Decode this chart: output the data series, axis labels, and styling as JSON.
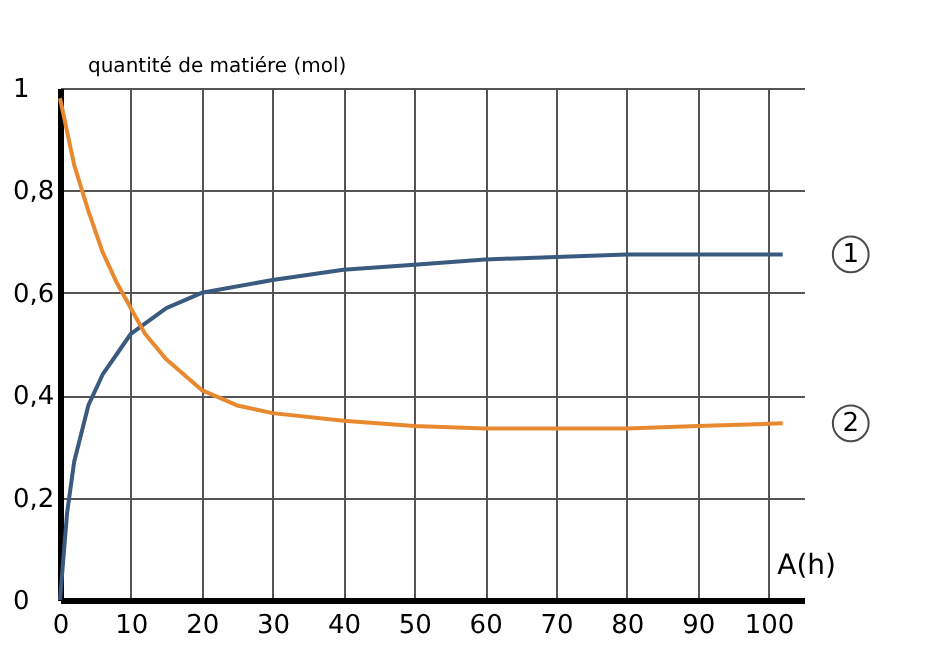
{
  "chart_data": {
    "type": "line",
    "xlabel": "A(h)",
    "ylabel": "quantité de matiére (mol)",
    "xlim": [
      0,
      105
    ],
    "xticks": [
      0,
      10,
      20,
      30,
      40,
      50,
      60,
      70,
      80,
      90,
      100
    ],
    "ylim": [
      0,
      1
    ],
    "yticks": [
      0,
      {
        "value": 0.2,
        "label": "0,2"
      },
      {
        "value": 0.4,
        "label": "0,4"
      },
      {
        "value": 0.6,
        "label": "0,6"
      },
      {
        "value": 0.8,
        "label": "0,8"
      },
      1
    ],
    "grid": true,
    "legend": false,
    "marker": "none",
    "line_style": "solid",
    "series": [
      {
        "name": "1",
        "color": "#3a5a80",
        "x": [
          0,
          1,
          2,
          4,
          6,
          8,
          10,
          15,
          20,
          30,
          40,
          50,
          60,
          70,
          80,
          90,
          102
        ],
        "values": [
          0,
          0.17,
          0.27,
          0.38,
          0.44,
          0.48,
          0.52,
          0.57,
          0.6,
          0.625,
          0.645,
          0.655,
          0.665,
          0.67,
          0.675,
          0.675,
          0.675
        ]
      },
      {
        "name": "2",
        "color": "#e8892f",
        "x": [
          0,
          2,
          4,
          6,
          8,
          10,
          12,
          15,
          20,
          25,
          30,
          40,
          50,
          60,
          70,
          80,
          90,
          102
        ],
        "values": [
          0.98,
          0.85,
          0.76,
          0.68,
          0.62,
          0.57,
          0.52,
          0.47,
          0.41,
          0.38,
          0.365,
          0.35,
          0.34,
          0.335,
          0.335,
          0.335,
          0.34,
          0.345
        ]
      }
    ]
  }
}
